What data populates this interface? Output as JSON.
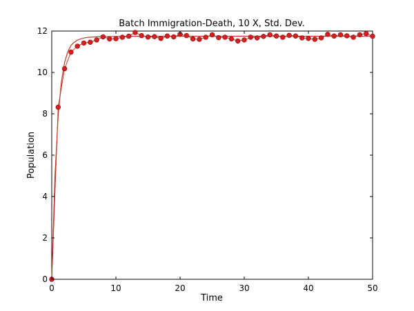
{
  "chart_data": {
    "type": "line",
    "title": "Batch Immigration-Death, 10 X, Std. Dev.",
    "xlabel": "Time",
    "ylabel": "Population",
    "xlim": [
      0,
      50
    ],
    "ylim": [
      0,
      12
    ],
    "xticks": [
      0,
      10,
      20,
      30,
      40,
      50
    ],
    "yticks": [
      0,
      2,
      4,
      6,
      8,
      10,
      12
    ],
    "grid": false,
    "legend": "none",
    "colors": {
      "line": "#c0392b",
      "marker_fill": "#d21f1f",
      "marker_edge": "#8b1010"
    },
    "series": [
      {
        "style": "markers",
        "x": [
          0,
          1,
          2,
          3,
          4,
          5,
          6,
          7,
          8,
          9,
          10,
          11,
          12,
          13,
          14,
          15,
          16,
          17,
          18,
          19,
          20,
          21,
          22,
          23,
          24,
          25,
          26,
          27,
          28,
          29,
          30,
          31,
          32,
          33,
          34,
          35,
          36,
          37,
          38,
          39,
          40,
          41,
          42,
          43,
          44,
          45,
          46,
          47,
          48,
          49,
          50
        ],
        "y": [
          0,
          8.32,
          10.18,
          10.98,
          11.27,
          11.42,
          11.46,
          11.57,
          11.72,
          11.62,
          11.63,
          11.7,
          11.75,
          11.93,
          11.78,
          11.71,
          11.73,
          11.64,
          11.76,
          11.72,
          11.84,
          11.78,
          11.62,
          11.6,
          11.7,
          11.82,
          11.68,
          11.7,
          11.62,
          11.52,
          11.57,
          11.7,
          11.67,
          11.74,
          11.82,
          11.76,
          11.7,
          11.79,
          11.76,
          11.67,
          11.64,
          11.6,
          11.67,
          11.84,
          11.76,
          11.82,
          11.77,
          11.7,
          11.82,
          11.88,
          11.75
        ]
      },
      {
        "style": "line",
        "x": [
          0,
          0.5,
          1,
          1.5,
          2,
          2.5,
          3,
          3.5,
          4,
          4.5,
          5,
          5.5,
          6,
          7,
          8,
          9,
          10,
          12,
          14,
          16,
          18,
          20,
          25,
          30,
          35,
          40,
          45,
          50
        ],
        "y": [
          0,
          5.0,
          7.9,
          9.55,
          10.48,
          11.0,
          11.3,
          11.46,
          11.56,
          11.62,
          11.66,
          11.69,
          11.7,
          11.72,
          11.73,
          11.735,
          11.74,
          11.745,
          11.745,
          11.745,
          11.75,
          11.75,
          11.75,
          11.75,
          11.75,
          11.75,
          11.75,
          11.75
        ]
      }
    ]
  }
}
